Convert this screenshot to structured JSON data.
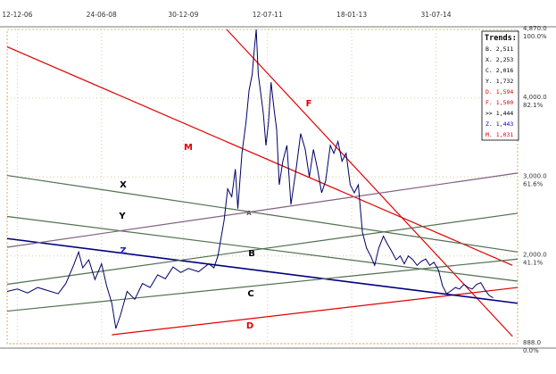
{
  "chart_data": {
    "type": "line",
    "x_ticks": [
      "12-12-06",
      "24-06-08",
      "30-12-09",
      "12-07-11",
      "18-01-13",
      "31-07-14"
    ],
    "y_right_ticks": [
      {
        "value": 4870,
        "label": "4,870.0",
        "pct": "100.0%"
      },
      {
        "value": 4000,
        "label": "4,000.0",
        "pct": "82.1%"
      },
      {
        "value": 3000,
        "label": "3,000.0",
        "pct": "61.6%"
      },
      {
        "value": 2000,
        "label": "2,000.0",
        "pct": "41.1%"
      },
      {
        "value": 888,
        "label": "888.0",
        "pct": "0.0%"
      }
    ],
    "ylim": [
      888,
      4870
    ],
    "grid": true,
    "legend": {
      "title": "Trends:",
      "placement": "top-right",
      "entries": [
        {
          "label": "B. 2,511",
          "color": "#000000"
        },
        {
          "label": "X. 2,253",
          "color": "#000000"
        },
        {
          "label": "C. 2,016",
          "color": "#000000"
        },
        {
          "label": "Y. 1,732",
          "color": "#000000"
        },
        {
          "label": "D. 1,594",
          "color": "#e00000"
        },
        {
          "label": "F. 1,500",
          "color": "#e00000"
        },
        {
          "label": ">> 1,444",
          "color": "#000000"
        },
        {
          "label": "Z. 1,443",
          "color": "#0000cc"
        },
        {
          "label": "M. 1,031",
          "color": "#e00000"
        }
      ]
    },
    "trendline_labels": [
      {
        "label": "M",
        "color": "#e00000"
      },
      {
        "label": "F",
        "color": "#e00000"
      },
      {
        "label": "X",
        "color": "#000000"
      },
      {
        "label": "Y",
        "color": "#000000"
      },
      {
        "label": "Z",
        "color": "#2020c0"
      },
      {
        "label": "A",
        "color": "#555555"
      },
      {
        "label": "B",
        "color": "#000000"
      },
      {
        "label": "C",
        "color": "#000000"
      },
      {
        "label": "D",
        "color": "#e00000"
      }
    ],
    "series": [
      {
        "color": "#000066",
        "points": [
          [
            0.0,
            1550
          ],
          [
            0.02,
            1580
          ],
          [
            0.04,
            1530
          ],
          [
            0.06,
            1600
          ],
          [
            0.08,
            1560
          ],
          [
            0.1,
            1520
          ],
          [
            0.115,
            1650
          ],
          [
            0.13,
            1880
          ],
          [
            0.14,
            2050
          ],
          [
            0.148,
            1850
          ],
          [
            0.16,
            1950
          ],
          [
            0.172,
            1700
          ],
          [
            0.185,
            1900
          ],
          [
            0.195,
            1620
          ],
          [
            0.205,
            1400
          ],
          [
            0.213,
            1080
          ],
          [
            0.222,
            1250
          ],
          [
            0.235,
            1550
          ],
          [
            0.25,
            1450
          ],
          [
            0.265,
            1650
          ],
          [
            0.28,
            1600
          ],
          [
            0.295,
            1760
          ],
          [
            0.31,
            1710
          ],
          [
            0.325,
            1860
          ],
          [
            0.34,
            1790
          ],
          [
            0.355,
            1840
          ],
          [
            0.375,
            1800
          ],
          [
            0.395,
            1900
          ],
          [
            0.405,
            1850
          ],
          [
            0.413,
            2000
          ],
          [
            0.425,
            2450
          ],
          [
            0.432,
            2850
          ],
          [
            0.44,
            2750
          ],
          [
            0.447,
            3100
          ],
          [
            0.452,
            2600
          ],
          [
            0.46,
            3300
          ],
          [
            0.468,
            3700
          ],
          [
            0.474,
            4100
          ],
          [
            0.48,
            4300
          ],
          [
            0.484,
            4600
          ],
          [
            0.488,
            4870
          ],
          [
            0.492,
            4300
          ],
          [
            0.497,
            4050
          ],
          [
            0.502,
            3800
          ],
          [
            0.507,
            3400
          ],
          [
            0.512,
            3700
          ],
          [
            0.517,
            4200
          ],
          [
            0.523,
            3850
          ],
          [
            0.528,
            3600
          ],
          [
            0.533,
            2900
          ],
          [
            0.54,
            3200
          ],
          [
            0.548,
            3400
          ],
          [
            0.556,
            2650
          ],
          [
            0.566,
            3100
          ],
          [
            0.575,
            3550
          ],
          [
            0.584,
            3350
          ],
          [
            0.592,
            3000
          ],
          [
            0.6,
            3350
          ],
          [
            0.608,
            3100
          ],
          [
            0.616,
            2800
          ],
          [
            0.624,
            2950
          ],
          [
            0.633,
            3400
          ],
          [
            0.64,
            3300
          ],
          [
            0.648,
            3450
          ],
          [
            0.656,
            3200
          ],
          [
            0.664,
            3300
          ],
          [
            0.672,
            2900
          ],
          [
            0.68,
            2800
          ],
          [
            0.688,
            2900
          ],
          [
            0.696,
            2300
          ],
          [
            0.704,
            2100
          ],
          [
            0.712,
            2000
          ],
          [
            0.72,
            1880
          ],
          [
            0.728,
            2100
          ],
          [
            0.737,
            2250
          ],
          [
            0.745,
            2150
          ],
          [
            0.754,
            2050
          ],
          [
            0.762,
            1950
          ],
          [
            0.77,
            2000
          ],
          [
            0.778,
            1900
          ],
          [
            0.786,
            2000
          ],
          [
            0.795,
            1950
          ],
          [
            0.803,
            1880
          ],
          [
            0.811,
            1930
          ],
          [
            0.82,
            1960
          ],
          [
            0.828,
            1880
          ],
          [
            0.836,
            1920
          ],
          [
            0.845,
            1820
          ],
          [
            0.853,
            1620
          ],
          [
            0.861,
            1520
          ],
          [
            0.87,
            1560
          ],
          [
            0.878,
            1600
          ],
          [
            0.886,
            1580
          ],
          [
            0.895,
            1640
          ],
          [
            0.903,
            1600
          ],
          [
            0.911,
            1580
          ],
          [
            0.92,
            1640
          ],
          [
            0.928,
            1660
          ],
          [
            0.936,
            1570
          ],
          [
            0.944,
            1500
          ],
          [
            0.952,
            1470
          ]
        ]
      }
    ],
    "trend_lines": [
      {
        "name": "M",
        "color": "#e00000",
        "from": [
          0.0,
          4650
        ],
        "to": [
          0.99,
          1880
        ]
      },
      {
        "name": "F",
        "color": "#e00000",
        "from": [
          0.43,
          4870
        ],
        "to": [
          0.99,
          980
        ]
      },
      {
        "name": "D",
        "color": "#e00000",
        "from": [
          0.205,
          1000
        ],
        "to": [
          1.0,
          1600
        ]
      },
      {
        "name": "Z",
        "color": "#000080",
        "from": [
          0.0,
          2220
        ],
        "to": [
          1.0,
          1400
        ]
      },
      {
        "name": "X",
        "color": "#507050",
        "from": [
          0.0,
          3020
        ],
        "to": [
          1.0,
          2050
        ]
      },
      {
        "name": "Y",
        "color": "#507050",
        "from": [
          0.0,
          2500
        ],
        "to": [
          1.0,
          1680
        ]
      },
      {
        "name": "B",
        "color": "#507050",
        "from": [
          0.0,
          1640
        ],
        "to": [
          1.0,
          2540
        ]
      },
      {
        "name": "C",
        "color": "#507050",
        "from": [
          0.0,
          1300
        ],
        "to": [
          1.0,
          1960
        ]
      },
      {
        "name": "A",
        "color": "#806080",
        "from": [
          0.0,
          2110
        ],
        "to": [
          1.0,
          3050
        ]
      }
    ]
  }
}
